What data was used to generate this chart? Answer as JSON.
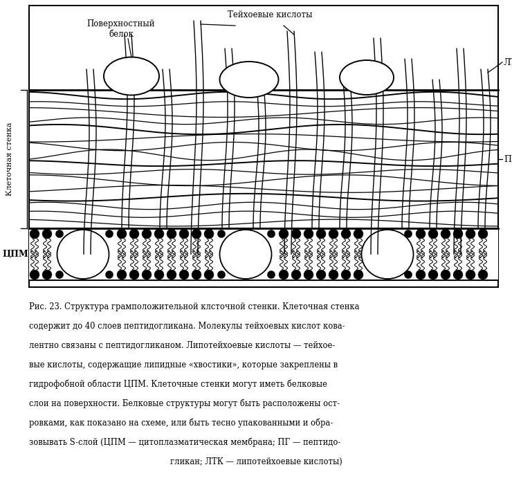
{
  "fig_width": 7.4,
  "fig_height": 7.01,
  "bg_color": "#ffffff",
  "caption_lines": [
    "Рис. 23. Структура грамположительной клсточной стенки. Клеточная стенка",
    "содержит до 40 слоев пептидогликана. Молекулы тейхоевых кислот кова-",
    "лентно связаны с пептидогликаном. Липотейхоевые кислоты — тейхое-",
    "вые кислоты, содержащие липидные «хвостики», которые закреплены в",
    "гидрофобной области ЦПМ. Клеточные стенки могут иметь белковые",
    "слои на поверхности. Белковые структуры могут быть расположены ост-",
    "ровками, как показано на схеме, или быть тесно упакованными и обра-",
    "зовывать S-слой (ЦПМ — цитоплазматическая мембрана; ПГ — пептидо-",
    "гликан; ЛТК — липотейхоевые кислоты)"
  ],
  "label_surface_protein": "Поверхностный\nбелок",
  "label_teichoic": "Тейхоевые кислоты",
  "label_LTK": "ЛТК",
  "label_PG": "ПГ",
  "label_cell_wall": "Клеточная стенка",
  "label_CPM": "ЦПМ"
}
